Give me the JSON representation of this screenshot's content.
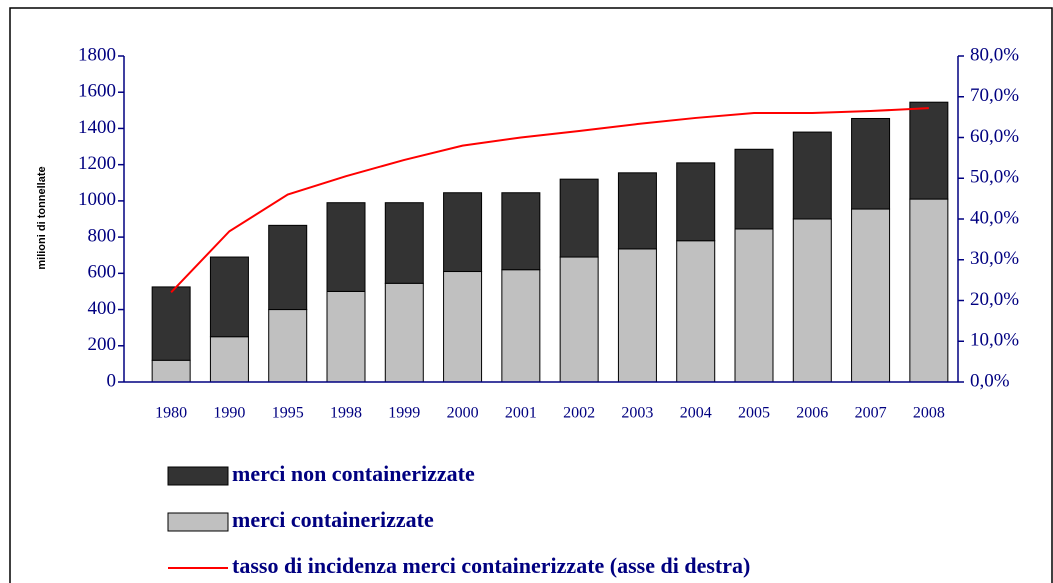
{
  "chart_data": {
    "type": "bar",
    "y_label": "milioni di tonnellate",
    "categories": [
      "1980",
      "1990",
      "1995",
      "1998",
      "1999",
      "2000",
      "2001",
      "2002",
      "2003",
      "2004",
      "2005",
      "2006",
      "2007",
      "2008"
    ],
    "stacked": true,
    "series": [
      {
        "name": "merci non containerizzate",
        "color": "#333333",
        "type": "bar",
        "values": [
          405,
          440,
          465,
          490,
          445,
          435,
          425,
          430,
          420,
          430,
          440,
          480,
          500,
          535
        ]
      },
      {
        "name": "merci containerizzate",
        "color": "#c0c0c0",
        "type": "bar",
        "values": [
          120,
          250,
          400,
          500,
          545,
          610,
          620,
          690,
          735,
          780,
          845,
          900,
          955,
          1010
        ]
      },
      {
        "name": "tasso di incidenza merci containerizzate (asse di destra)",
        "color": "#ff0000",
        "type": "line",
        "axis": "y2",
        "values": [
          22,
          37,
          46,
          50.5,
          54.5,
          58,
          60,
          61.6,
          63.3,
          64.8,
          66,
          66,
          66.5,
          67.2
        ]
      }
    ],
    "ylim": [
      0,
      1800
    ],
    "yticks": [
      0,
      200,
      400,
      600,
      800,
      1000,
      1200,
      1400,
      1600,
      1800
    ],
    "y2lim": [
      0,
      80
    ],
    "y2ticks": [
      {
        "value": 0,
        "label": "0,0%"
      },
      {
        "value": 10,
        "label": "10,0%"
      },
      {
        "value": 20,
        "label": "20,0%"
      },
      {
        "value": 30,
        "label": "30,0%"
      },
      {
        "value": 40,
        "label": "40,0%"
      },
      {
        "value": 50,
        "label": "50,0%"
      },
      {
        "value": 60,
        "label": "60,0%"
      },
      {
        "value": 70,
        "label": "70,0%"
      },
      {
        "value": 80,
        "label": "80,0%"
      }
    ],
    "axis_color": "#000080",
    "legend": "bottom-left"
  }
}
